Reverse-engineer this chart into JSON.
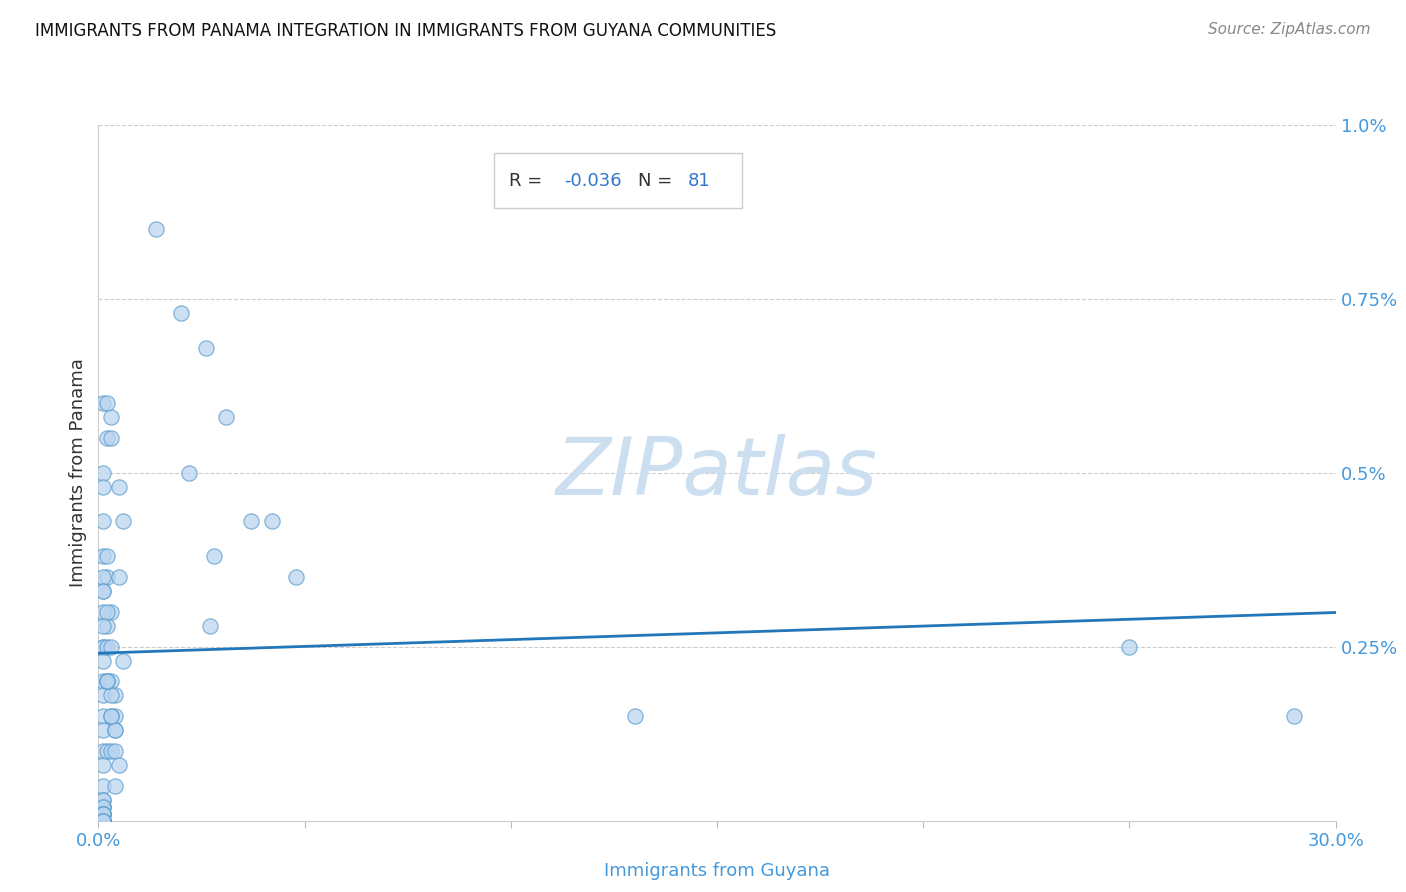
{
  "title": "IMMIGRANTS FROM PANAMA INTEGRATION IN IMMIGRANTS FROM GUYANA COMMUNITIES",
  "source": "Source: ZipAtlas.com",
  "xlabel": "Immigrants from Guyana",
  "ylabel": "Immigrants from Panama",
  "R_value": "-0.036",
  "N_value": "81",
  "xlim": [
    0.0,
    0.3
  ],
  "ylim": [
    0.0,
    0.01
  ],
  "xtick_positions": [
    0.0,
    0.05,
    0.1,
    0.15,
    0.2,
    0.25,
    0.3
  ],
  "xtick_labels": [
    "0.0%",
    "",
    "",
    "",
    "",
    "",
    "30.0%"
  ],
  "ytick_vals": [
    0.0,
    0.0025,
    0.005,
    0.0075,
    0.01
  ],
  "ytick_labels": [
    "",
    "0.25%",
    "0.5%",
    "0.75%",
    "1.0%"
  ],
  "scatter_face_color": "#b8d4ee",
  "scatter_edge_color": "#5599cc",
  "line_color": "#2277bb",
  "watermark_color": "#ccdff0",
  "grid_color": "#cccccc",
  "label_color": "#4499dd",
  "title_color": "#111111",
  "source_color": "#888888",
  "ylabel_color": "#333333",
  "stat_text_color": "#333333",
  "stat_value_color": "#3377cc",
  "stat_border_color": "#cccccc",
  "points_x": [
    0.014,
    0.02,
    0.026,
    0.003,
    0.002,
    0.031,
    0.022,
    0.005,
    0.037,
    0.042,
    0.028,
    0.027,
    0.006,
    0.002,
    0.001,
    0.003,
    0.002,
    0.001,
    0.048,
    0.006,
    0.001,
    0.002,
    0.003,
    0.001,
    0.001,
    0.001,
    0.001,
    0.002,
    0.001,
    0.001,
    0.001,
    0.002,
    0.001,
    0.001,
    0.001,
    0.001,
    0.001,
    0.001,
    0.001,
    0.001,
    0.002,
    0.003,
    0.002,
    0.003,
    0.004,
    0.003,
    0.004,
    0.004,
    0.004,
    0.005,
    0.001,
    0.001,
    0.001,
    0.001,
    0.001,
    0.001,
    0.001,
    0.001,
    0.001,
    0.001,
    0.001,
    0.001,
    0.001,
    0.001,
    0.001,
    0.001,
    0.001,
    0.001,
    0.001,
    0.002,
    0.003,
    0.002,
    0.003,
    0.002,
    0.003,
    0.004,
    0.005,
    0.004,
    0.13,
    0.25,
    0.29
  ],
  "points_y": [
    0.0085,
    0.0073,
    0.0068,
    0.0058,
    0.0055,
    0.0058,
    0.005,
    0.0048,
    0.0043,
    0.0043,
    0.0038,
    0.0028,
    0.0043,
    0.0035,
    0.0033,
    0.003,
    0.0028,
    0.0025,
    0.0035,
    0.0023,
    0.006,
    0.006,
    0.0055,
    0.005,
    0.0048,
    0.0043,
    0.0038,
    0.0038,
    0.0035,
    0.0033,
    0.003,
    0.003,
    0.0028,
    0.0025,
    0.0023,
    0.002,
    0.0018,
    0.0015,
    0.0013,
    0.001,
    0.0025,
    0.0025,
    0.002,
    0.002,
    0.0018,
    0.0018,
    0.0015,
    0.0013,
    0.0013,
    0.0035,
    0.0008,
    0.0005,
    0.0003,
    0.0002,
    0.0001,
    0.0,
    0.0,
    0.0,
    0.0001,
    0.0002,
    0.0003,
    0.0002,
    0.0001,
    0.0001,
    0.0,
    0.0,
    0.0001,
    0.0,
    0.0,
    0.002,
    0.0015,
    0.002,
    0.0015,
    0.001,
    0.001,
    0.001,
    0.0008,
    0.0005,
    0.0015,
    0.0025,
    0.0015
  ],
  "point_size": 120
}
